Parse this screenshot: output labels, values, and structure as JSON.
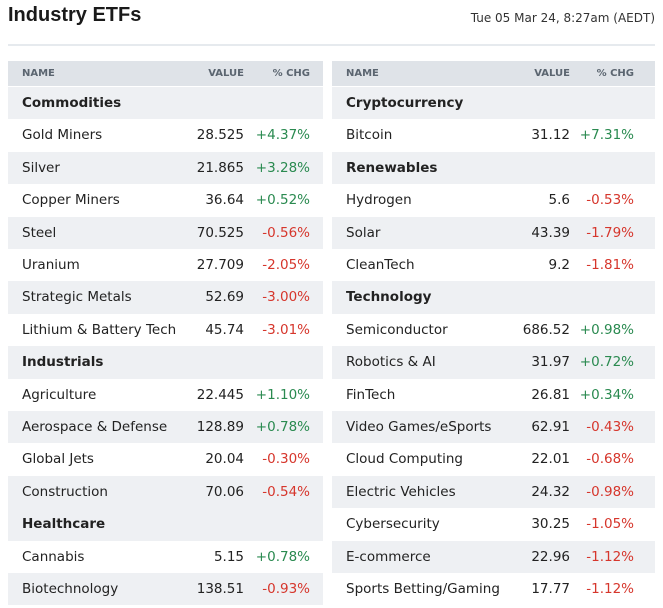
{
  "header": {
    "title": "Industry ETFs",
    "timestamp": "Tue 05 Mar 24, 8:27am (AEDT)"
  },
  "tables": [
    {
      "columns": [
        "NAME",
        "VALUE",
        "% CHG"
      ],
      "sections": [
        {
          "title": "Commodities",
          "rows": [
            [
              "Gold Miners",
              "28.525",
              "+4.37%"
            ],
            [
              "Silver",
              "21.865",
              "+3.28%"
            ],
            [
              "Copper Miners",
              "36.64",
              "+0.52%"
            ],
            [
              "Steel",
              "70.525",
              "-0.56%"
            ],
            [
              "Uranium",
              "27.709",
              "-2.05%"
            ],
            [
              "Strategic Metals",
              "52.69",
              "-3.00%"
            ],
            [
              "Lithium & Battery Tech",
              "45.74",
              "-3.01%"
            ]
          ]
        },
        {
          "title": "Industrials",
          "rows": [
            [
              "Agriculture",
              "22.445",
              "+1.10%"
            ],
            [
              "Aerospace & Defense",
              "128.89",
              "+0.78%"
            ],
            [
              "Global Jets",
              "20.04",
              "-0.30%"
            ],
            [
              "Construction",
              "70.06",
              "-0.54%"
            ]
          ]
        },
        {
          "title": "Healthcare",
          "rows": [
            [
              "Cannabis",
              "5.15",
              "+0.78%"
            ],
            [
              "Biotechnology",
              "138.51",
              "-0.93%"
            ]
          ]
        }
      ]
    },
    {
      "columns": [
        "NAME",
        "VALUE",
        "% CHG"
      ],
      "sections": [
        {
          "title": "Cryptocurrency",
          "rows": [
            [
              "Bitcoin",
              "31.12",
              "+7.31%"
            ]
          ]
        },
        {
          "title": "Renewables",
          "rows": [
            [
              "Hydrogen",
              "5.6",
              "-0.53%"
            ],
            [
              "Solar",
              "43.39",
              "-1.79%"
            ],
            [
              "CleanTech",
              "9.2",
              "-1.81%"
            ]
          ]
        },
        {
          "title": "Technology",
          "rows": [
            [
              "Semiconductor",
              "686.52",
              "+0.98%"
            ],
            [
              "Robotics & AI",
              "31.97",
              "+0.72%"
            ],
            [
              "FinTech",
              "26.81",
              "+0.34%"
            ],
            [
              "Video Games/eSports",
              "62.91",
              "-0.43%"
            ],
            [
              "Cloud Computing",
              "22.01",
              "-0.68%"
            ],
            [
              "Electric Vehicles",
              "24.32",
              "-0.98%"
            ],
            [
              "Cybersecurity",
              "30.25",
              "-1.05%"
            ],
            [
              "E-commerce",
              "22.96",
              "-1.12%"
            ],
            [
              "Sports Betting/Gaming",
              "17.77",
              "-1.12%"
            ]
          ]
        }
      ]
    }
  ]
}
